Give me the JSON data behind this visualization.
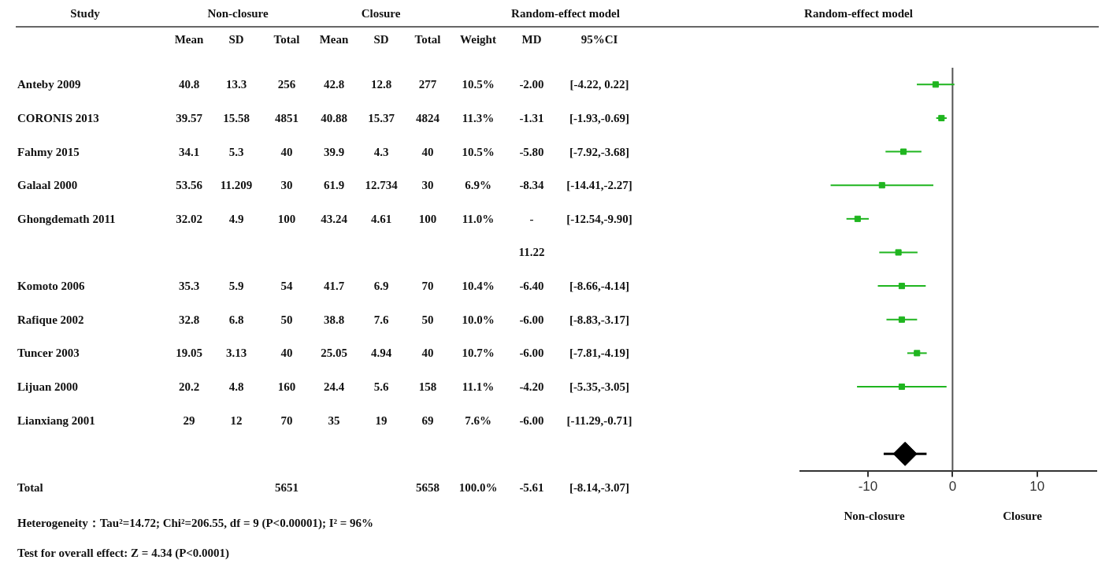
{
  "chart_data": [
    {
      "type": "other",
      "ylabel": "Study",
      "categories": [
        "Mean",
        "SD",
        "Total",
        "Mean",
        "SD",
        "Total",
        "Weight",
        "MD",
        "95%CI"
      ],
      "y_categories": [
        "Anteby 2009",
        "CORONIS 2013",
        "Fahmy 2015",
        "Galaal 2000",
        "Ghongdemath 2011",
        null,
        "Komoto 2006",
        "Rafique 2002",
        "Tuncer 2003",
        "Lijuan 2000",
        "Lianxiang 2001",
        null,
        "Total"
      ],
      "cell_labels": [
        [
          "40.8",
          "13.3",
          "256",
          "42.8",
          "12.8",
          "277",
          "10.5%",
          "-2.00",
          "[-4.22, 0.22]"
        ],
        [
          "39.57",
          "15.58",
          "4851",
          "40.88",
          "15.37",
          "4824",
          "11.3%",
          "-1.31",
          "[-1.93,-0.69]"
        ],
        [
          "34.1",
          "5.3",
          "40",
          "39.9",
          "4.3",
          "40",
          "10.5%",
          "-5.80",
          "[-7.92,-3.68]"
        ],
        [
          "53.56",
          "11.209",
          "30",
          "61.9",
          "12.734",
          "30",
          "6.9%",
          "-8.34",
          "[-14.41,-2.27]"
        ],
        [
          "32.02",
          "4.9",
          "100",
          "43.24",
          "4.61",
          "100",
          "11.0%",
          "-",
          "[-12.54,-9.90]"
        ],
        [
          null,
          null,
          null,
          null,
          null,
          null,
          null,
          "11.22",
          null
        ],
        [
          "35.3",
          "5.9",
          "54",
          "41.7",
          "6.9",
          "70",
          "10.4%",
          "-6.40",
          "[-8.66,-4.14]"
        ],
        [
          "32.8",
          "6.8",
          "50",
          "38.8",
          "7.6",
          "50",
          "10.0%",
          "-6.00",
          "[-8.83,-3.17]"
        ],
        [
          "19.05",
          "3.13",
          "40",
          "25.05",
          "4.94",
          "40",
          "10.7%",
          "-6.00",
          "[-7.81,-4.19]"
        ],
        [
          "20.2",
          "4.8",
          "160",
          "24.4",
          "5.6",
          "158",
          "11.1%",
          "-4.20",
          "[-5.35,-3.05]"
        ],
        [
          "29",
          "12",
          "70",
          "35",
          "19",
          "69",
          "7.6%",
          "-6.00",
          "[-11.29,-0.71]"
        ],
        [
          null,
          null,
          null,
          null,
          null,
          null,
          null,
          null,
          null
        ],
        [
          null,
          null,
          "5651",
          null,
          null,
          "5658",
          "100.0%",
          "-5.61",
          "[-8.14,-3.07]"
        ]
      ],
      "annotations": [
        "Non-closure",
        "Closure",
        "Random-effect model",
        "Heterogeneity：Tau²=14.72; Chi²=206.55, df = 9 (P<0.00001); I² = 96%",
        "Test for overall effect: Z = 4.34 (P<0.0001)"
      ]
    },
    {
      "type": "scatter",
      "orientation": "horizontal",
      "title": "Random-effect model",
      "categories": [
        null,
        null,
        null,
        null,
        null,
        null,
        null,
        null,
        null,
        null,
        null,
        null
      ],
      "series": [
        {
          "marker": "square",
          "color": "#1fb51f",
          "values": [
            -2.0,
            -1.31,
            -5.8,
            -8.34,
            -11.22,
            -6.4,
            -6.0,
            -6.0,
            -4.2,
            -6.0,
            null,
            null
          ],
          "errors": [
            [
              -4.22,
              0.22
            ],
            [
              -1.93,
              -0.69
            ],
            [
              -7.92,
              -3.68
            ],
            [
              -14.41,
              -2.27
            ],
            [
              -12.54,
              -9.9
            ],
            [
              -8.66,
              -4.14
            ],
            [
              -8.83,
              -3.17
            ],
            [
              -7.81,
              -4.19
            ],
            [
              -5.35,
              -3.05
            ],
            [
              -11.29,
              -0.71
            ],
            null,
            null
          ]
        },
        {
          "marker": "diamond",
          "color": "#000000",
          "values": [
            null,
            null,
            null,
            null,
            null,
            null,
            null,
            null,
            null,
            null,
            null,
            -5.61
          ],
          "errors": [
            null,
            null,
            null,
            null,
            null,
            null,
            null,
            null,
            null,
            null,
            null,
            [
              -8.14,
              -3.07
            ]
          ]
        }
      ],
      "xlim": [
        -18,
        17
      ],
      "xticks": [
        -10,
        0,
        10
      ],
      "ref_lines": [
        {
          "axis": "x",
          "value": 0,
          "color": "#555555"
        }
      ],
      "grid": false,
      "legend": false,
      "tick_labels": "x",
      "annotations": [
        "Non-closure",
        "Closure"
      ]
    }
  ]
}
